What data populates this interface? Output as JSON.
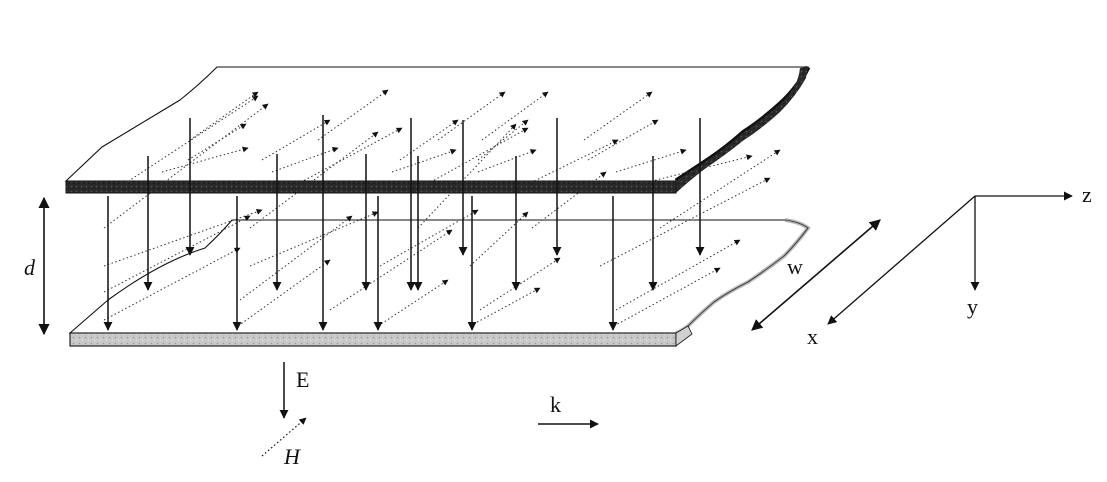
{
  "labels": {
    "d": "d",
    "w": "w",
    "x": "x",
    "y": "y",
    "z": "z",
    "E": "E",
    "H": "H",
    "k": "k"
  },
  "colors": {
    "ink": "#111111",
    "plate_top_edge": "#222222",
    "plate_bottom_edge": "#bdbdbd",
    "field_dotted": "#333333"
  },
  "icons": {
    "e_field": "solid-downward-arrow",
    "h_field": "dotted-diagonal-arrow",
    "propagation": "rightward-arrow"
  }
}
